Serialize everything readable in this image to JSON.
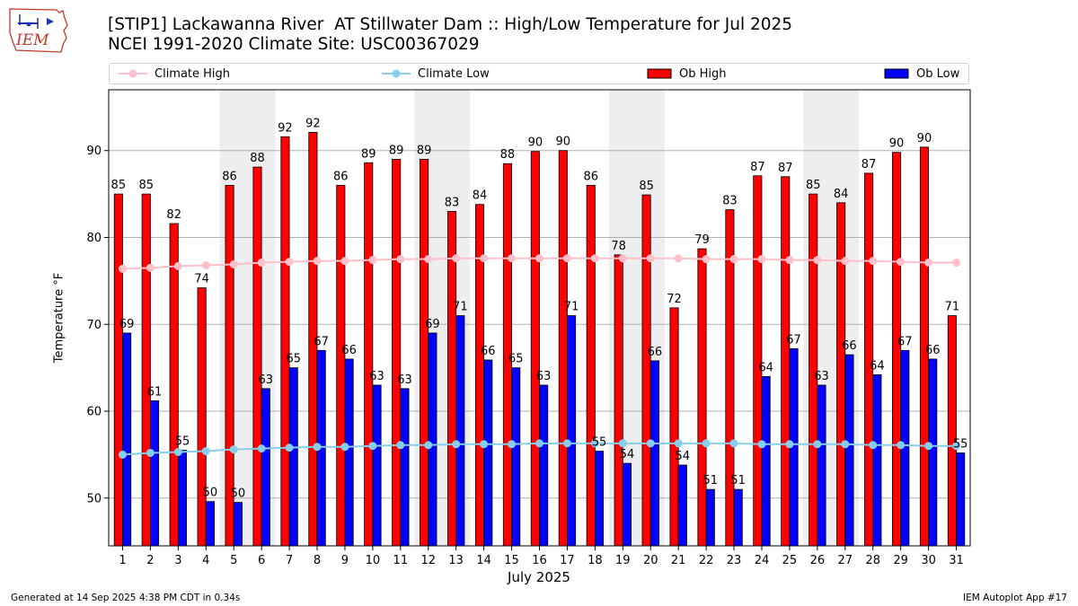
{
  "header": {
    "title_line1": "[STIP1] Lackawanna River  AT Stillwater Dam :: High/Low Temperature for Jul 2025",
    "title_line2": "NCEI 1991-2020 Climate Site: USC00367029"
  },
  "logo": {
    "text": "IEM",
    "icon": "iowa-state-map-weather-logo-icon"
  },
  "legend": {
    "items": [
      {
        "label": "Climate High",
        "kind": "line",
        "color": "#ffc0cb"
      },
      {
        "label": "Climate Low",
        "kind": "line",
        "color": "#87ceeb"
      },
      {
        "label": "Ob High",
        "kind": "bar",
        "color": "#ff0000"
      },
      {
        "label": "Ob Low",
        "kind": "bar",
        "color": "#0000ff"
      }
    ]
  },
  "footer": {
    "generated": "Generated at 14 Sep 2025 4:38 PM CDT in 0.34s",
    "app": "IEM Autoplot App #17"
  },
  "chart_data": {
    "type": "bar",
    "xlabel": "July 2025",
    "ylabel": "Temperature °F",
    "ylim": [
      44.5,
      97
    ],
    "yticks": [
      50,
      60,
      70,
      80,
      90
    ],
    "grid": "horizontal",
    "legend_position": "top",
    "categories": [
      "1",
      "2",
      "3",
      "4",
      "5",
      "6",
      "7",
      "8",
      "9",
      "10",
      "11",
      "12",
      "13",
      "14",
      "15",
      "16",
      "17",
      "18",
      "19",
      "20",
      "21",
      "22",
      "23",
      "24",
      "25",
      "26",
      "27",
      "28",
      "29",
      "30",
      "31"
    ],
    "weekend_shading_days": [
      [
        5,
        6
      ],
      [
        12,
        13
      ],
      [
        19,
        20
      ],
      [
        26,
        27
      ]
    ],
    "series": [
      {
        "name": "Ob High",
        "type": "bar",
        "color": "#ff0000",
        "values": [
          85,
          85,
          81.6,
          74.2,
          86,
          88.1,
          91.6,
          92.1,
          86,
          88.6,
          89,
          89,
          83,
          83.8,
          88.5,
          89.9,
          90,
          86,
          78,
          84.9,
          71.9,
          78.7,
          83.2,
          87.1,
          87,
          85,
          84,
          87.4,
          89.8,
          90.4,
          71
        ],
        "labels": [
          "85",
          "85",
          "82",
          "74",
          "86",
          "88",
          "92",
          "92",
          "86",
          "89",
          "89",
          "89",
          "83",
          "84",
          "88",
          "90",
          "90",
          "86",
          "78",
          "85",
          "72",
          "79",
          "83",
          "87",
          "87",
          "85",
          "84",
          "87",
          "90",
          "90",
          "71"
        ]
      },
      {
        "name": "Ob Low",
        "type": "bar",
        "color": "#0000ff",
        "values": [
          69,
          61.2,
          55.5,
          49.6,
          49.5,
          62.6,
          65,
          67,
          66,
          63,
          62.6,
          69,
          71,
          65.9,
          65,
          63,
          71,
          55.4,
          54,
          65.8,
          53.8,
          51,
          51,
          64,
          67.2,
          63,
          66.5,
          64.2,
          67,
          66,
          55.2
        ],
        "labels": [
          "69",
          "61",
          "55",
          "50",
          "50",
          "63",
          "65",
          "67",
          "66",
          "63",
          "63",
          "69",
          "71",
          "66",
          "65",
          "63",
          "71",
          "55",
          "54",
          "66",
          "54",
          "51",
          "51",
          "64",
          "67",
          "63",
          "66",
          "64",
          "67",
          "66",
          "55"
        ]
      },
      {
        "name": "Climate High",
        "type": "line",
        "color": "#ffc0cb",
        "values": [
          76.4,
          76.5,
          76.7,
          76.8,
          76.9,
          77.1,
          77.2,
          77.3,
          77.3,
          77.4,
          77.5,
          77.5,
          77.6,
          77.6,
          77.6,
          77.6,
          77.6,
          77.6,
          77.6,
          77.6,
          77.6,
          77.5,
          77.5,
          77.5,
          77.4,
          77.4,
          77.3,
          77.3,
          77.2,
          77.1,
          77.1
        ]
      },
      {
        "name": "Climate Low",
        "type": "line",
        "color": "#87ceeb",
        "values": [
          55,
          55.2,
          55.3,
          55.4,
          55.6,
          55.7,
          55.8,
          55.9,
          55.9,
          56,
          56.1,
          56.1,
          56.2,
          56.2,
          56.2,
          56.3,
          56.3,
          56.3,
          56.3,
          56.3,
          56.3,
          56.3,
          56.3,
          56.2,
          56.2,
          56.2,
          56.2,
          56.1,
          56.1,
          56,
          56
        ]
      }
    ]
  }
}
